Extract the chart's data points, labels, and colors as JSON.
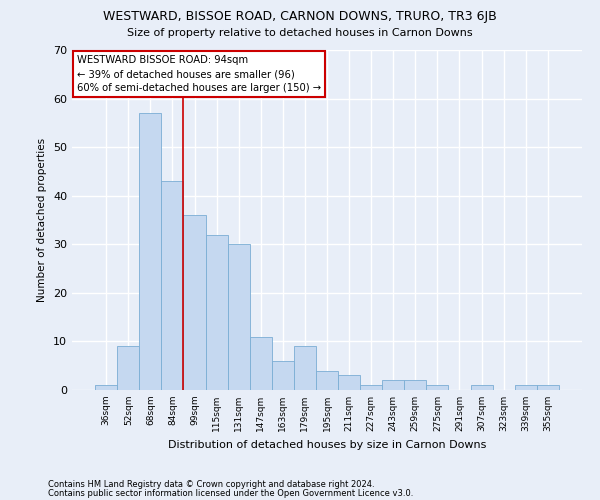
{
  "title": "WESTWARD, BISSOE ROAD, CARNON DOWNS, TRURO, TR3 6JB",
  "subtitle": "Size of property relative to detached houses in Carnon Downs",
  "xlabel": "Distribution of detached houses by size in Carnon Downs",
  "ylabel": "Number of detached properties",
  "footer1": "Contains HM Land Registry data © Crown copyright and database right 2024.",
  "footer2": "Contains public sector information licensed under the Open Government Licence v3.0.",
  "bar_labels": [
    "36sqm",
    "52sqm",
    "68sqm",
    "84sqm",
    "99sqm",
    "115sqm",
    "131sqm",
    "147sqm",
    "163sqm",
    "179sqm",
    "195sqm",
    "211sqm",
    "227sqm",
    "243sqm",
    "259sqm",
    "275sqm",
    "291sqm",
    "307sqm",
    "323sqm",
    "339sqm",
    "355sqm"
  ],
  "bar_values": [
    1,
    9,
    57,
    43,
    36,
    32,
    30,
    11,
    6,
    9,
    4,
    3,
    1,
    2,
    2,
    1,
    0,
    1,
    0,
    1,
    1
  ],
  "bar_color": "#c5d8f0",
  "bar_edge_color": "#7aadd4",
  "background_color": "#e8eef8",
  "grid_color": "#ffffff",
  "annotation_text": "WESTWARD BISSOE ROAD: 94sqm\n← 39% of detached houses are smaller (96)\n60% of semi-detached houses are larger (150) →",
  "annotation_box_color": "#ffffff",
  "annotation_box_edge": "#cc0000",
  "vline_color": "#cc0000",
  "vline_x": 3.5,
  "ylim": [
    0,
    70
  ],
  "yticks": [
    0,
    10,
    20,
    30,
    40,
    50,
    60,
    70
  ]
}
